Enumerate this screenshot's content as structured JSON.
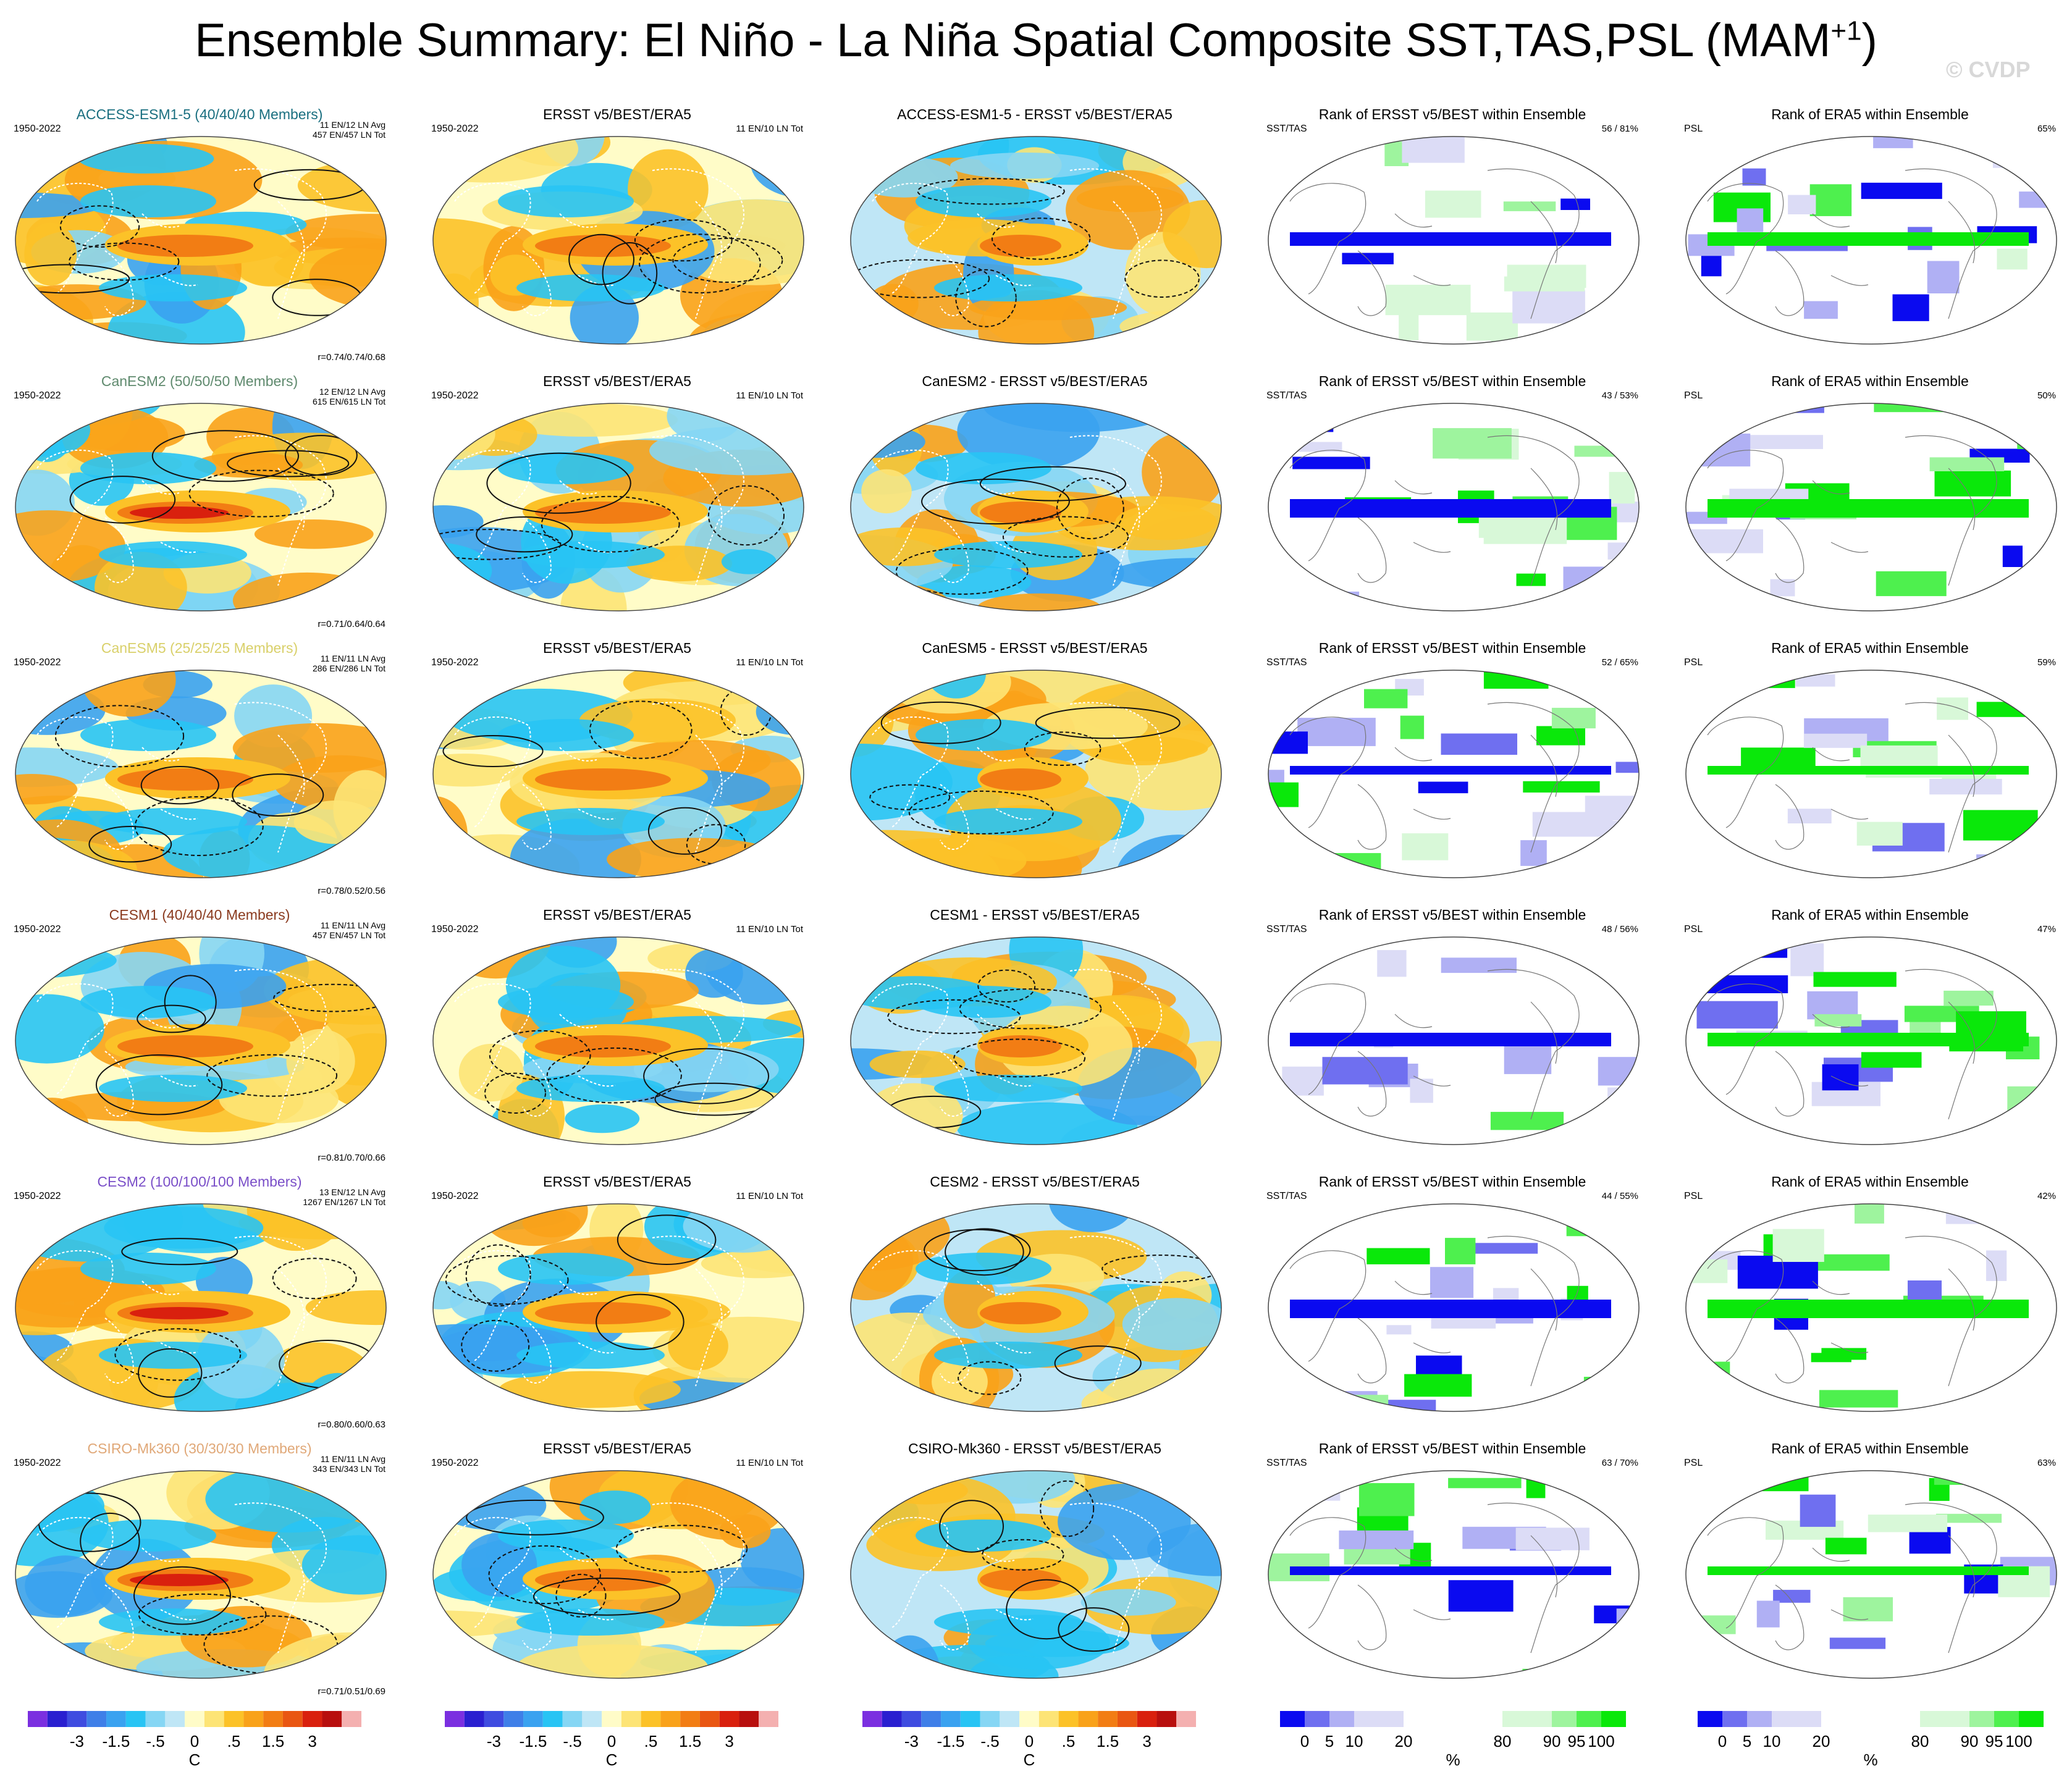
{
  "figure": {
    "title_main": "Ensemble Summary: El Niño - La Niña Spatial Composite SST,TAS,PSL (MAM",
    "title_sup": "+1",
    "title_end": ")",
    "watermark": "© CVDP",
    "obs_title": "ERSST v5/BEST/ERA5",
    "obs_counts": "11 EN/10 LN Tot",
    "period": "1950-2022",
    "rank_sst_title": "Rank of ERSST v5/BEST within Ensemble",
    "rank_psl_title": "Rank of ERA5 within Ensemble",
    "rank_sst_label": "SST/TAS",
    "rank_psl_label": "PSL"
  },
  "rows": [
    {
      "model": "ACCESS-ESM1-5",
      "members": "ACCESS-ESM1-5 (40/40/40 Members)",
      "name_color": "#1a6f80",
      "avg": "11 EN/12 LN Avg",
      "tot": "457 EN/457 LN Tot",
      "corr": "r=0.74/0.74/0.68",
      "diff_title": "ACCESS-ESM1-5 - ERSST v5/BEST/ERA5",
      "rank_sst": "56 /  81%",
      "rank_psl": "65%"
    },
    {
      "model": "CanESM2",
      "members": "CanESM2 (50/50/50 Members)",
      "name_color": "#5f8a6e",
      "avg": "12 EN/12 LN Avg",
      "tot": "615 EN/615 LN Tot",
      "corr": "r=0.71/0.64/0.64",
      "diff_title": "CanESM2 - ERSST v5/BEST/ERA5",
      "rank_sst": "43 /  53%",
      "rank_psl": "50%"
    },
    {
      "model": "CanESM5",
      "members": "CanESM5 (25/25/25 Members)",
      "name_color": "#d9d06a",
      "avg": "11 EN/11 LN Avg",
      "tot": "286 EN/286 LN Tot",
      "corr": "r=0.78/0.52/0.56",
      "diff_title": "CanESM5 - ERSST v5/BEST/ERA5",
      "rank_sst": "52 /  65%",
      "rank_psl": "59%"
    },
    {
      "model": "CESM1",
      "members": "CESM1 (40/40/40 Members)",
      "name_color": "#8a3a1e",
      "avg": "11 EN/11 LN Avg",
      "tot": "457 EN/457 LN Tot",
      "corr": "r=0.81/0.70/0.66",
      "diff_title": "CESM1 - ERSST v5/BEST/ERA5",
      "rank_sst": "48 /  56%",
      "rank_psl": "47%"
    },
    {
      "model": "CESM2",
      "members": "CESM2 (100/100/100 Members)",
      "name_color": "#7a4fc8",
      "avg": "13 EN/12 LN Avg",
      "tot": "1267 EN/1267 LN Tot",
      "corr": "r=0.80/0.60/0.63",
      "diff_title": "CESM2 - ERSST v5/BEST/ERA5",
      "rank_sst": "44 /  55%",
      "rank_psl": "42%"
    },
    {
      "model": "CSIRO-Mk360",
      "members": "CSIRO-Mk360 (30/30/30 Members)",
      "name_color": "#e0a878",
      "avg": "11 EN/11 LN Avg",
      "tot": "343 EN/343 LN Tot",
      "corr": "r=0.71/0.51/0.69",
      "diff_title": "CSIRO-Mk360 - ERSST v5/BEST/ERA5",
      "rank_sst": "63 /  70%",
      "rank_psl": "63%"
    }
  ],
  "temp_colorbar": {
    "colors": [
      "#7b2fe0",
      "#2a1fd0",
      "#3f4ce0",
      "#3f7fe8",
      "#3aa2f0",
      "#28c4f4",
      "#86d6f4",
      "#bfe6f6",
      "#fffcc8",
      "#fde476",
      "#fcc228",
      "#f9a21a",
      "#f27d14",
      "#e95612",
      "#d9200e",
      "#b80f0e",
      "#f4b0b0"
    ],
    "ticks": [
      "-3",
      "-1.5",
      "-.5",
      "0",
      ".5",
      "1.5",
      "3"
    ],
    "unit": "C"
  },
  "rank_colorbar": {
    "colors": [
      "#0a0af0",
      "#6f6ff0",
      "#b0b0f4",
      "#dcdcf6",
      "#ffffff",
      "#d8f8d8",
      "#9ef49e",
      "#4ef04e",
      "#0ae80a"
    ],
    "ticks": [
      "0",
      "5",
      "10",
      "20",
      "80",
      "90",
      "95",
      "100"
    ],
    "unit": "%"
  },
  "colors": {
    "contour": "#111111",
    "land_outline": "#ffffff",
    "rank_land_outline": "#777777"
  }
}
